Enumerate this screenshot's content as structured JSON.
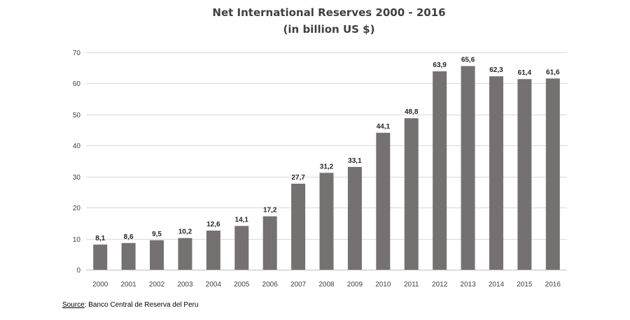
{
  "chart_data": {
    "type": "bar",
    "title": [
      "Net International Reserves 2000 - 2016",
      "(in billion US $)"
    ],
    "xlabel": "",
    "ylabel": "",
    "ylim": [
      0,
      70
    ],
    "yticks": [
      0,
      10,
      20,
      30,
      40,
      50,
      60,
      70
    ],
    "grid": true,
    "categories": [
      "2000",
      "2001",
      "2002",
      "2003",
      "2004",
      "2005",
      "2006",
      "2007",
      "2008",
      "2009",
      "2010",
      "2011",
      "2012",
      "2013",
      "2014",
      "2015",
      "2016"
    ],
    "values": [
      8.1,
      8.6,
      9.5,
      10.2,
      12.6,
      14.1,
      17.2,
      27.7,
      31.2,
      33.1,
      44.1,
      48.8,
      63.9,
      65.6,
      62.3,
      61.4,
      61.6
    ],
    "value_labels": [
      "8,1",
      "8,6",
      "9,5",
      "10,2",
      "12,6",
      "14,1",
      "17,2",
      "27,7",
      "31,2",
      "33,1",
      "44,1",
      "48,8",
      "63,9",
      "65,6",
      "62,3",
      "61,4",
      "61,6"
    ],
    "bar_color": "#767171",
    "grid_color": "#d9d9d9"
  },
  "source": {
    "label": "Source",
    "text": ": Banco Central de Reserva del Peru"
  }
}
